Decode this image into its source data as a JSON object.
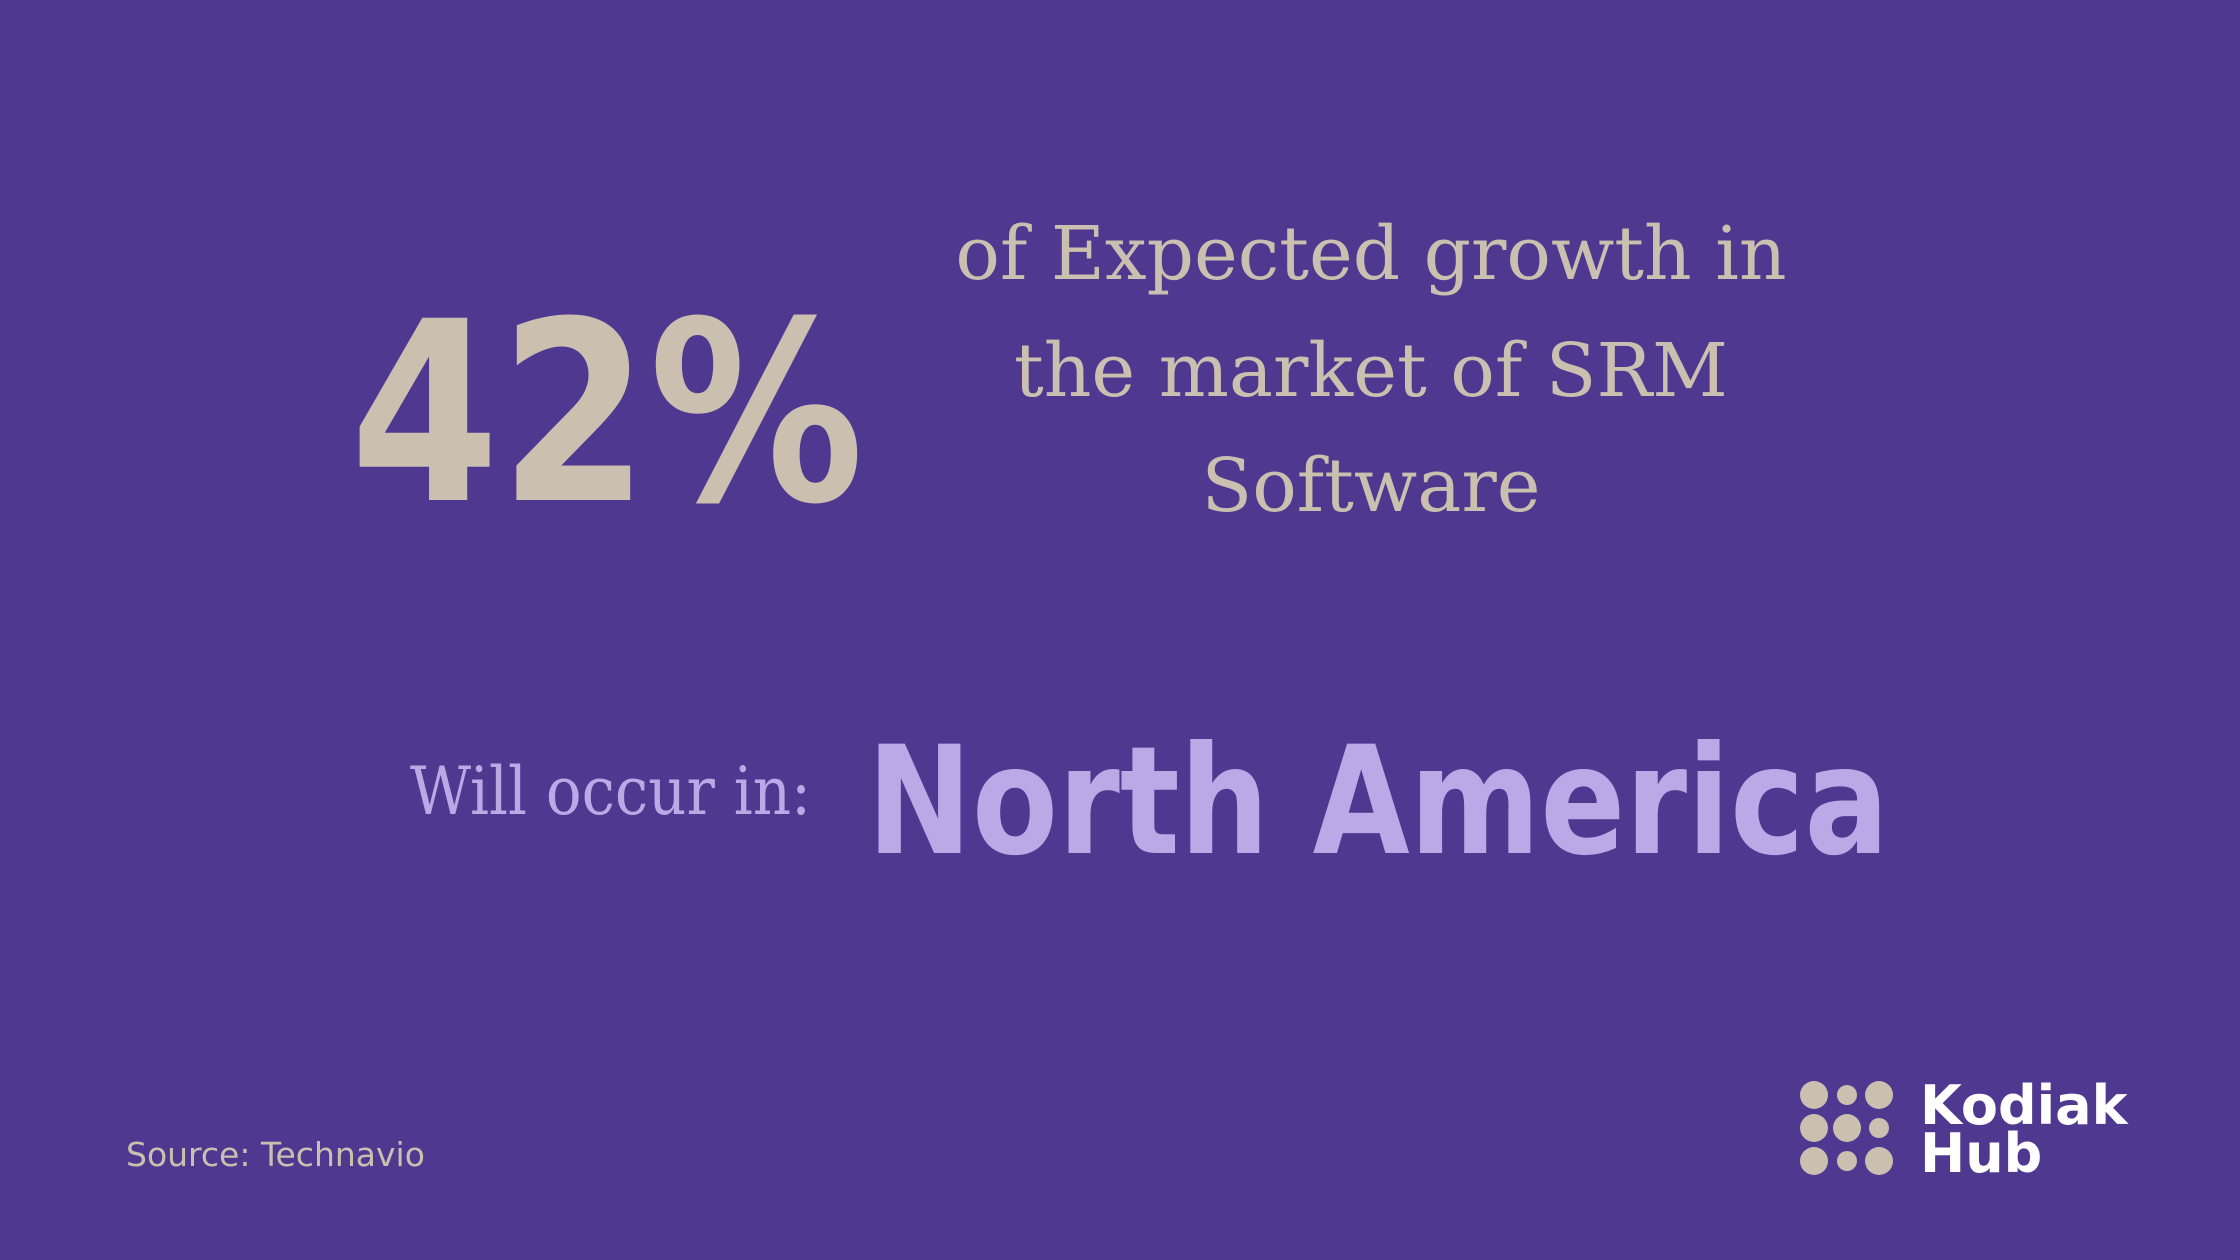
{
  "stat": {
    "value": "42%",
    "description": [
      "of Expected growth in",
      "the market of SRM",
      "Software"
    ]
  },
  "location": {
    "label": "Will occur in:",
    "value": "North America"
  },
  "source": "Source: Technavio",
  "logo": {
    "lines": [
      "Kodiak",
      "Hub"
    ]
  }
}
